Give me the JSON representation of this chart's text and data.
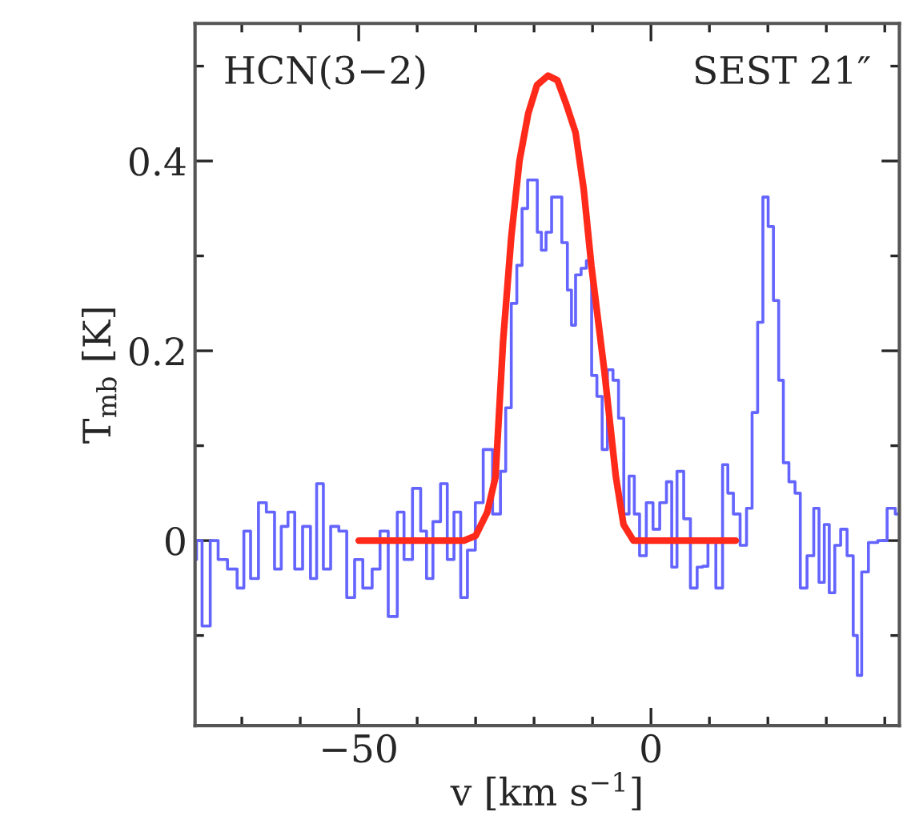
{
  "chart_data": {
    "type": "step",
    "xlabel": "v [km s$^{−1}$]",
    "ylabel": "T$_{mb}$ [K]",
    "annotations": [
      "HCN(3−2)",
      "SEST 21″"
    ],
    "xlim": [
      -78,
      42.5
    ],
    "ylim": [
      -0.195,
      0.545
    ],
    "xticks": [
      {
        "value": -70,
        "label": null
      },
      {
        "value": -60,
        "label": null
      },
      {
        "value": -50,
        "label": "−50"
      },
      {
        "value": -40,
        "label": null
      },
      {
        "value": -30,
        "label": null
      },
      {
        "value": -20,
        "label": null
      },
      {
        "value": -10,
        "label": null
      },
      0,
      {
        "value": 10,
        "label": null
      },
      {
        "value": 20,
        "label": null
      },
      {
        "value": 30,
        "label": null
      },
      {
        "value": 40,
        "label": null
      }
    ],
    "yticks": [
      {
        "value": -0.1,
        "label": null
      },
      0,
      {
        "value": 0.1,
        "label": null
      },
      0.2,
      {
        "value": 0.3,
        "label": null
      },
      0.4,
      {
        "value": 0.5,
        "label": null
      }
    ],
    "grid": false,
    "legend": false,
    "series": [
      {
        "color": "#6464ff",
        "x": [
          -78.0,
          -77.5,
          -76.1,
          -74.7,
          -73.4,
          -71.5,
          -70.1,
          -69.2,
          -67.8,
          -66.5,
          -65.1,
          -63.7,
          -62.8,
          -61.4,
          -60.5,
          -58.7,
          -57.8,
          -56.6,
          -55.5,
          -54.1,
          -52.7,
          -51.4,
          -50.0,
          -48.6,
          -46.8,
          -45.9,
          -44.0,
          -42.8,
          -41.7,
          -39.9,
          -38.9,
          -37.9,
          -36.7,
          -35.3,
          -34.4,
          -33.0,
          -32.1,
          -30.7,
          -29.4,
          -28.0,
          -26.2,
          -25.3,
          -24.4,
          -23.4,
          -22.5,
          -21.6,
          -20.6,
          -19.8,
          -19.1,
          -18.4,
          -17.5,
          -16.5,
          -15.7,
          -14.8,
          -13.8,
          -13.4,
          -12.4,
          -11.5,
          -10.6,
          -9.7,
          -8.8,
          -7.9,
          -7.0,
          -6.0,
          -5.1,
          -4.2,
          -3.3,
          -2.4,
          -1.5,
          -0.1,
          0.8,
          2.2,
          3.1,
          4.0,
          4.9,
          6.3,
          7.2,
          8.6,
          9.1,
          10.4,
          11.8,
          12.7,
          13.6,
          14.6,
          15.9,
          16.8,
          17.8,
          18.7,
          19.6,
          20.5,
          21.4,
          22.3,
          23.0,
          24.2,
          25.1,
          26.0,
          27.4,
          28.3,
          29.2,
          30.1,
          30.9,
          32.0,
          32.9,
          34.2,
          35.0,
          35.6,
          36.5,
          37.9,
          39.7,
          41.1,
          42.5
        ],
        "values": [
          -0.02,
          0.0,
          -0.09,
          0.0,
          -0.02,
          -0.03,
          -0.05,
          0.01,
          -0.04,
          0.04,
          0.03,
          -0.03,
          0.015,
          0.03,
          -0.03,
          0.015,
          -0.04,
          0.06,
          -0.03,
          0.015,
          0.01,
          -0.06,
          -0.02,
          -0.05,
          -0.03,
          0.01,
          -0.08,
          0.03,
          -0.02,
          0.055,
          0.01,
          -0.04,
          0.02,
          0.06,
          -0.02,
          0.03,
          -0.06,
          -0.01,
          0.04,
          0.096,
          0.028,
          0.073,
          0.14,
          0.25,
          0.29,
          0.35,
          0.38,
          0.38,
          0.325,
          0.306,
          0.325,
          0.362,
          0.362,
          0.314,
          0.264,
          0.227,
          0.28,
          0.287,
          0.295,
          0.174,
          0.152,
          0.096,
          0.18,
          0.169,
          0.129,
          0.028,
          0.068,
          0.028,
          -0.016,
          0.04,
          0.012,
          0.04,
          0.062,
          -0.028,
          0.073,
          0.023,
          -0.05,
          -0.028,
          -0.027,
          0.0,
          -0.05,
          0.08,
          0.05,
          0.028,
          -0.005,
          0.034,
          0.135,
          0.23,
          0.362,
          0.331,
          0.253,
          0.169,
          0.082,
          0.062,
          0.05,
          -0.05,
          -0.016,
          0.034,
          -0.044,
          0.017,
          -0.055,
          -0.005,
          0.012,
          -0.016,
          -0.1,
          -0.142,
          -0.033,
          -0.002,
          0.0,
          0.034,
          0.028
        ]
      },
      {
        "type": "line",
        "color": "#ff2a1a",
        "x": [
          -50,
          -32,
          -30,
          -28,
          -26.6,
          -25.3,
          -23.9,
          -22.5,
          -21,
          -19.5,
          -17.6,
          -16,
          -14.5,
          -12.9,
          -11.5,
          -10.2,
          -8,
          -6,
          -4.7,
          -3,
          14.5
        ],
        "values": [
          0,
          0,
          0.005,
          0.03,
          0.067,
          0.21,
          0.32,
          0.4,
          0.45,
          0.48,
          0.49,
          0.485,
          0.46,
          0.43,
          0.37,
          0.29,
          0.18,
          0.067,
          0.017,
          0,
          0
        ]
      }
    ]
  }
}
